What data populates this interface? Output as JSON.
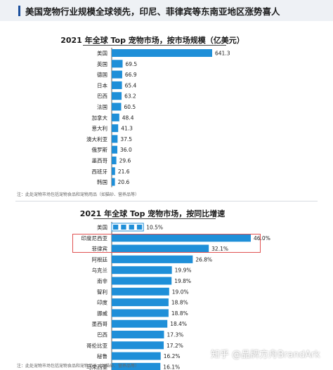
{
  "header": {
    "title": "美国宠物行业规模全球领先，印尼、菲律宾等东南亚地区涨势喜人"
  },
  "notes": {
    "chart1": "注：此处宠物市场包括宠物食品和宠物用品（如猫砂、营养品等）",
    "chart2": "注：此处宠物市场包括宠物食品和宠物用品（如猫砂、营养品等）"
  },
  "watermark": "知乎 @品牌方舟BrandArk",
  "colors": {
    "bar": "#1f8fd8",
    "header_bg": "#eef1f5",
    "accent": "#1b4f9c",
    "highlight": "#e05252"
  },
  "chart_data": [
    {
      "type": "bar",
      "orientation": "horizontal",
      "title": "2021 年全球 Top 宠物市场，按市场规模（亿美元）",
      "categories": [
        "美国",
        "英国",
        "德国",
        "日本",
        "巴西",
        "法国",
        "加拿大",
        "意大利",
        "澳大利亚",
        "俄罗斯",
        "墨西哥",
        "西班牙",
        "韩国"
      ],
      "values": [
        641.3,
        69.5,
        66.9,
        65.4,
        63.2,
        60.5,
        48.4,
        41.3,
        37.5,
        36.0,
        29.6,
        21.6,
        20.6
      ],
      "labels": [
        "641.3",
        "69.5",
        "66.9",
        "65.4",
        "63.2",
        "60.5",
        "48.4",
        "41.3",
        "37.5",
        "36.0",
        "29.6",
        "21.6",
        "20.6"
      ],
      "xlim": [
        0,
        641.3
      ],
      "grid": false,
      "legend": "none"
    },
    {
      "type": "bar",
      "orientation": "horizontal",
      "title": "2021 年全球 Top 宠物市场，按同比增速",
      "categories": [
        "美国",
        "印度尼西亚",
        "菲律宾",
        "阿根廷",
        "乌克兰",
        "南非",
        "智利",
        "印度",
        "挪威",
        "墨西哥",
        "巴西",
        "哥伦比亚",
        "秘鲁",
        "马来西亚"
      ],
      "values": [
        10.5,
        46.0,
        32.1,
        26.8,
        19.9,
        19.8,
        19.0,
        18.8,
        18.8,
        18.4,
        17.3,
        17.2,
        16.2,
        16.1
      ],
      "labels": [
        "10.5%",
        "46.0%",
        "32.1%",
        "26.8%",
        "19.9%",
        "19.8%",
        "19.0%",
        "18.8%",
        "18.8%",
        "18.4%",
        "17.3%",
        "17.2%",
        "16.2%",
        "16.1%"
      ],
      "xlim": [
        0,
        46.0
      ],
      "unit": "%",
      "highlighted_categories": [
        "印度尼西亚",
        "菲律宾"
      ],
      "grid": false,
      "legend": "none"
    }
  ]
}
